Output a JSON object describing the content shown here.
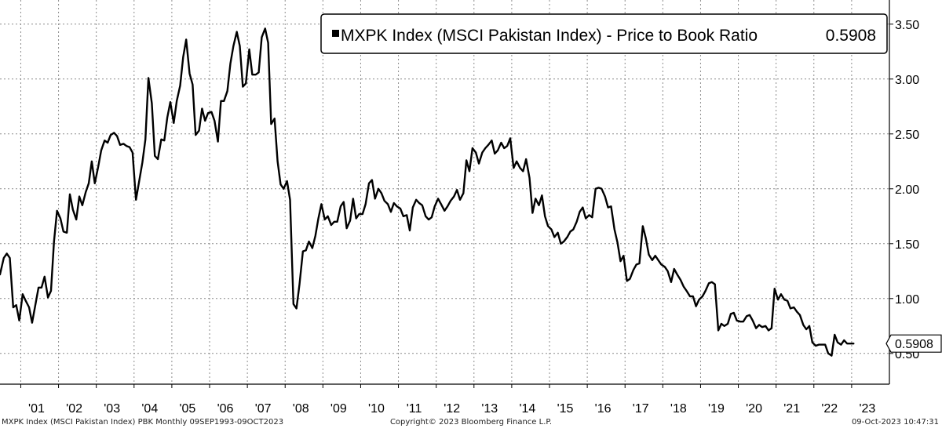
{
  "chart_data": {
    "type": "line",
    "title": "",
    "xlabel": "",
    "ylabel": "",
    "grid": true,
    "legend_position": "top-right",
    "ylim": [
      0.22,
      3.72
    ],
    "xlim": [
      2000.45,
      2024.0
    ],
    "y_ticks": [
      0.5,
      1.0,
      1.5,
      2.0,
      2.5,
      3.0,
      3.5
    ],
    "y_tick_labels": [
      "0.50",
      "1.00",
      "1.50",
      "2.00",
      "2.50",
      "3.00",
      "3.50"
    ],
    "x_ticks": [
      2001,
      2002,
      2003,
      2004,
      2005,
      2006,
      2007,
      2008,
      2009,
      2010,
      2011,
      2012,
      2013,
      2014,
      2015,
      2016,
      2017,
      2018,
      2019,
      2020,
      2021,
      2022,
      2023
    ],
    "x_tick_labels": [
      "'01",
      "'02",
      "'03",
      "'04",
      "'05",
      "'06",
      "'07",
      "'08",
      "'09",
      "'10",
      "'11",
      "'12",
      "'13",
      "'14",
      "'15",
      "'16",
      "'17",
      "'18",
      "'19",
      "'20",
      "'21",
      "'22",
      "'23"
    ],
    "last_value_label": "0.5908",
    "series": [
      {
        "name": "MXPK Index (MSCI Pakistan Index) - Price to Book Ratio",
        "last_value": "0.5908",
        "color": "#000000",
        "points": [
          [
            2000.45,
            1.22
          ],
          [
            2000.55,
            1.37
          ],
          [
            2000.63,
            1.41
          ],
          [
            2000.71,
            1.37
          ],
          [
            2000.8,
            0.92
          ],
          [
            2000.88,
            0.94
          ],
          [
            2000.96,
            0.8
          ],
          [
            2001.05,
            1.04
          ],
          [
            2001.13,
            0.98
          ],
          [
            2001.22,
            0.92
          ],
          [
            2001.3,
            0.78
          ],
          [
            2001.38,
            0.93
          ],
          [
            2001.47,
            1.1
          ],
          [
            2001.55,
            1.1
          ],
          [
            2001.63,
            1.2
          ],
          [
            2001.72,
            1.01
          ],
          [
            2001.8,
            1.07
          ],
          [
            2001.88,
            1.52
          ],
          [
            2001.96,
            1.8
          ],
          [
            2002.05,
            1.73
          ],
          [
            2002.13,
            1.61
          ],
          [
            2002.22,
            1.6
          ],
          [
            2002.3,
            1.95
          ],
          [
            2002.38,
            1.81
          ],
          [
            2002.47,
            1.72
          ],
          [
            2002.55,
            1.93
          ],
          [
            2002.63,
            1.85
          ],
          [
            2002.72,
            1.97
          ],
          [
            2002.8,
            2.05
          ],
          [
            2002.88,
            2.25
          ],
          [
            2002.96,
            2.05
          ],
          [
            2003.05,
            2.2
          ],
          [
            2003.13,
            2.35
          ],
          [
            2003.22,
            2.44
          ],
          [
            2003.3,
            2.42
          ],
          [
            2003.38,
            2.49
          ],
          [
            2003.47,
            2.51
          ],
          [
            2003.55,
            2.48
          ],
          [
            2003.63,
            2.4
          ],
          [
            2003.72,
            2.41
          ],
          [
            2003.8,
            2.39
          ],
          [
            2003.88,
            2.38
          ],
          [
            2003.96,
            2.33
          ],
          [
            2004.05,
            1.9
          ],
          [
            2004.13,
            2.06
          ],
          [
            2004.22,
            2.24
          ],
          [
            2004.3,
            2.45
          ],
          [
            2004.38,
            3.01
          ],
          [
            2004.47,
            2.78
          ],
          [
            2004.55,
            2.3
          ],
          [
            2004.63,
            2.27
          ],
          [
            2004.72,
            2.45
          ],
          [
            2004.8,
            2.44
          ],
          [
            2004.88,
            2.65
          ],
          [
            2004.96,
            2.79
          ],
          [
            2005.05,
            2.6
          ],
          [
            2005.13,
            2.8
          ],
          [
            2005.22,
            2.94
          ],
          [
            2005.3,
            3.2
          ],
          [
            2005.38,
            3.36
          ],
          [
            2005.47,
            3.05
          ],
          [
            2005.55,
            2.95
          ],
          [
            2005.63,
            2.49
          ],
          [
            2005.72,
            2.53
          ],
          [
            2005.8,
            2.73
          ],
          [
            2005.88,
            2.62
          ],
          [
            2005.96,
            2.69
          ],
          [
            2006.05,
            2.7
          ],
          [
            2006.13,
            2.62
          ],
          [
            2006.22,
            2.43
          ],
          [
            2006.3,
            2.8
          ],
          [
            2006.38,
            2.8
          ],
          [
            2006.47,
            2.89
          ],
          [
            2006.55,
            3.14
          ],
          [
            2006.63,
            3.3
          ],
          [
            2006.72,
            3.43
          ],
          [
            2006.8,
            3.3
          ],
          [
            2006.88,
            2.93
          ],
          [
            2006.96,
            2.96
          ],
          [
            2007.05,
            3.27
          ],
          [
            2007.13,
            3.04
          ],
          [
            2007.22,
            3.04
          ],
          [
            2007.3,
            3.06
          ],
          [
            2007.38,
            3.38
          ],
          [
            2007.47,
            3.46
          ],
          [
            2007.55,
            3.33
          ],
          [
            2007.63,
            2.59
          ],
          [
            2007.72,
            2.64
          ],
          [
            2007.8,
            2.25
          ],
          [
            2007.88,
            2.04
          ],
          [
            2007.96,
            2.0
          ],
          [
            2008.05,
            2.07
          ],
          [
            2008.13,
            1.9
          ],
          [
            2008.22,
            0.95
          ],
          [
            2008.3,
            0.91
          ],
          [
            2008.38,
            1.13
          ],
          [
            2008.47,
            1.43
          ],
          [
            2008.55,
            1.44
          ],
          [
            2008.63,
            1.52
          ],
          [
            2008.72,
            1.46
          ],
          [
            2008.8,
            1.57
          ],
          [
            2008.88,
            1.73
          ],
          [
            2008.96,
            1.86
          ],
          [
            2009.05,
            1.72
          ],
          [
            2009.13,
            1.75
          ],
          [
            2009.22,
            1.67
          ],
          [
            2009.3,
            1.7
          ],
          [
            2009.38,
            1.7
          ],
          [
            2009.47,
            1.84
          ],
          [
            2009.55,
            1.88
          ],
          [
            2009.63,
            1.64
          ],
          [
            2009.72,
            1.71
          ],
          [
            2009.8,
            1.91
          ],
          [
            2009.88,
            1.73
          ],
          [
            2009.96,
            1.77
          ],
          [
            2010.05,
            1.77
          ],
          [
            2010.13,
            1.86
          ],
          [
            2010.22,
            2.05
          ],
          [
            2010.3,
            2.08
          ],
          [
            2010.38,
            1.91
          ],
          [
            2010.47,
            2.0
          ],
          [
            2010.55,
            1.96
          ],
          [
            2010.63,
            1.89
          ],
          [
            2010.72,
            1.86
          ],
          [
            2010.8,
            1.79
          ],
          [
            2010.88,
            1.87
          ],
          [
            2010.96,
            1.84
          ],
          [
            2011.05,
            1.82
          ],
          [
            2011.13,
            1.75
          ],
          [
            2011.22,
            1.76
          ],
          [
            2011.3,
            1.62
          ],
          [
            2011.38,
            1.83
          ],
          [
            2011.47,
            1.9
          ],
          [
            2011.55,
            1.87
          ],
          [
            2011.63,
            1.85
          ],
          [
            2011.72,
            1.75
          ],
          [
            2011.8,
            1.72
          ],
          [
            2011.88,
            1.74
          ],
          [
            2011.96,
            1.84
          ],
          [
            2012.05,
            1.91
          ],
          [
            2012.13,
            1.86
          ],
          [
            2012.22,
            1.8
          ],
          [
            2012.3,
            1.84
          ],
          [
            2012.38,
            1.89
          ],
          [
            2012.47,
            1.93
          ],
          [
            2012.55,
            1.99
          ],
          [
            2012.63,
            1.9
          ],
          [
            2012.72,
            1.96
          ],
          [
            2012.8,
            2.26
          ],
          [
            2012.88,
            2.16
          ],
          [
            2012.96,
            2.37
          ],
          [
            2013.05,
            2.33
          ],
          [
            2013.13,
            2.23
          ],
          [
            2013.22,
            2.33
          ],
          [
            2013.3,
            2.37
          ],
          [
            2013.38,
            2.4
          ],
          [
            2013.47,
            2.44
          ],
          [
            2013.55,
            2.32
          ],
          [
            2013.63,
            2.35
          ],
          [
            2013.72,
            2.42
          ],
          [
            2013.8,
            2.37
          ],
          [
            2013.88,
            2.39
          ],
          [
            2013.96,
            2.46
          ],
          [
            2014.05,
            2.19
          ],
          [
            2014.13,
            2.25
          ],
          [
            2014.22,
            2.19
          ],
          [
            2014.3,
            2.16
          ],
          [
            2014.38,
            2.27
          ],
          [
            2014.47,
            2.1
          ],
          [
            2014.55,
            1.78
          ],
          [
            2014.63,
            1.91
          ],
          [
            2014.72,
            1.85
          ],
          [
            2014.8,
            1.94
          ],
          [
            2014.88,
            1.75
          ],
          [
            2014.96,
            1.66
          ],
          [
            2015.05,
            1.63
          ],
          [
            2015.13,
            1.56
          ],
          [
            2015.22,
            1.6
          ],
          [
            2015.3,
            1.5
          ],
          [
            2015.38,
            1.52
          ],
          [
            2015.47,
            1.56
          ],
          [
            2015.55,
            1.61
          ],
          [
            2015.63,
            1.63
          ],
          [
            2015.72,
            1.7
          ],
          [
            2015.8,
            1.79
          ],
          [
            2015.88,
            1.83
          ],
          [
            2015.96,
            1.73
          ],
          [
            2016.05,
            1.76
          ],
          [
            2016.13,
            1.74
          ],
          [
            2016.22,
            2.0
          ],
          [
            2016.3,
            2.01
          ],
          [
            2016.38,
            2.0
          ],
          [
            2016.47,
            1.93
          ],
          [
            2016.55,
            1.83
          ],
          [
            2016.63,
            1.84
          ],
          [
            2016.72,
            1.63
          ],
          [
            2016.8,
            1.51
          ],
          [
            2016.88,
            1.34
          ],
          [
            2016.96,
            1.39
          ],
          [
            2017.05,
            1.16
          ],
          [
            2017.13,
            1.18
          ],
          [
            2017.22,
            1.26
          ],
          [
            2017.3,
            1.31
          ],
          [
            2017.38,
            1.32
          ],
          [
            2017.47,
            1.66
          ],
          [
            2017.55,
            1.55
          ],
          [
            2017.63,
            1.4
          ],
          [
            2017.72,
            1.35
          ],
          [
            2017.8,
            1.39
          ],
          [
            2017.88,
            1.35
          ],
          [
            2017.96,
            1.31
          ],
          [
            2018.05,
            1.29
          ],
          [
            2018.13,
            1.25
          ],
          [
            2018.22,
            1.15
          ],
          [
            2018.3,
            1.27
          ],
          [
            2018.38,
            1.22
          ],
          [
            2018.47,
            1.17
          ],
          [
            2018.55,
            1.11
          ],
          [
            2018.63,
            1.07
          ],
          [
            2018.72,
            1.02
          ],
          [
            2018.8,
            1.02
          ],
          [
            2018.88,
            0.93
          ],
          [
            2018.96,
            0.99
          ],
          [
            2019.05,
            1.02
          ],
          [
            2019.13,
            1.07
          ],
          [
            2019.22,
            1.14
          ],
          [
            2019.3,
            1.15
          ],
          [
            2019.38,
            1.13
          ],
          [
            2019.47,
            0.71
          ],
          [
            2019.55,
            0.77
          ],
          [
            2019.63,
            0.75
          ],
          [
            2019.72,
            0.77
          ],
          [
            2019.8,
            0.86
          ],
          [
            2019.88,
            0.87
          ],
          [
            2019.96,
            0.8
          ],
          [
            2020.05,
            0.79
          ],
          [
            2020.13,
            0.79
          ],
          [
            2020.22,
            0.84
          ],
          [
            2020.3,
            0.85
          ],
          [
            2020.38,
            0.8
          ],
          [
            2020.47,
            0.73
          ],
          [
            2020.55,
            0.76
          ],
          [
            2020.63,
            0.74
          ],
          [
            2020.72,
            0.75
          ],
          [
            2020.8,
            0.71
          ],
          [
            2020.88,
            0.73
          ],
          [
            2020.96,
            1.09
          ],
          [
            2021.05,
            0.99
          ],
          [
            2021.13,
            1.04
          ],
          [
            2021.22,
            0.99
          ],
          [
            2021.3,
            0.98
          ],
          [
            2021.38,
            0.91
          ],
          [
            2021.47,
            0.92
          ],
          [
            2021.55,
            0.88
          ],
          [
            2021.63,
            0.85
          ],
          [
            2021.72,
            0.76
          ],
          [
            2021.8,
            0.72
          ],
          [
            2021.88,
            0.75
          ],
          [
            2021.96,
            0.6
          ],
          [
            2022.05,
            0.57
          ],
          [
            2022.13,
            0.58
          ],
          [
            2022.22,
            0.58
          ],
          [
            2022.3,
            0.58
          ],
          [
            2022.38,
            0.5
          ],
          [
            2022.47,
            0.48
          ],
          [
            2022.55,
            0.67
          ],
          [
            2022.63,
            0.6
          ],
          [
            2022.72,
            0.58
          ],
          [
            2022.8,
            0.62
          ],
          [
            2022.88,
            0.59
          ],
          [
            2022.96,
            0.59
          ],
          [
            2023.05,
            0.59
          ]
        ]
      }
    ]
  },
  "footer": {
    "left": "MXPK Index (MSCI Pakistan Index) PBK  Monthly 09SEP1993-09OCT2023",
    "center": "Copyright© 2023 Bloomberg Finance L.P.",
    "right": "09-Oct-2023 10:47:31"
  }
}
